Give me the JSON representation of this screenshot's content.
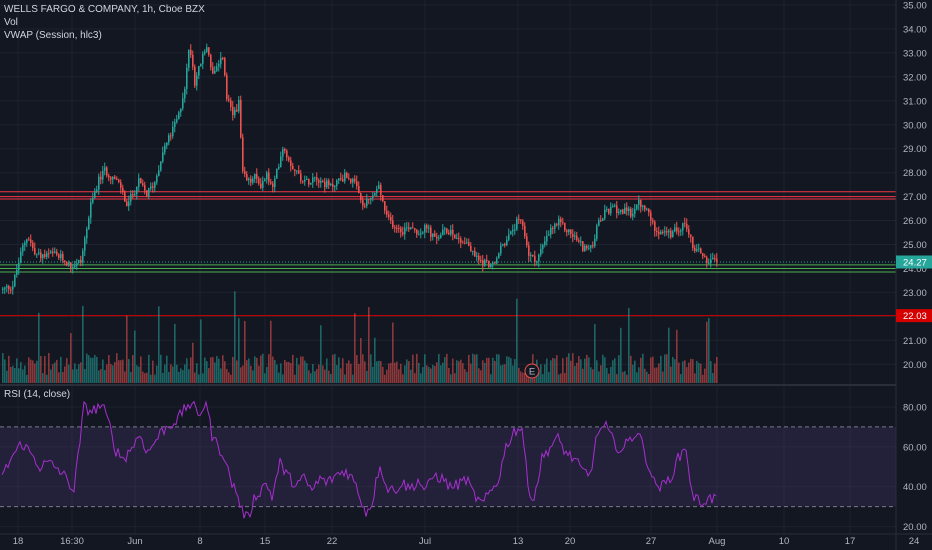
{
  "legend": {
    "symbol": "WELLS FARGO & COMPANY, 1h, Cboe BZX",
    "volume": "Vol",
    "vwap": "VWAP (Session, hlc3)"
  },
  "rsi_legend": "RSI (14, close)",
  "colors": {
    "background": "#131722",
    "up": "#26a69a",
    "down": "#ef5350",
    "grid": "#1e222d",
    "rsi_line": "#a72fd0",
    "rsi_band": "#7e57c2",
    "support_green": "#4caf50",
    "resistance_red": "#f23645",
    "last_price_tag": "#26a69a",
    "level_tag": "#d50000"
  },
  "chart_data": [
    {
      "type": "candlestick",
      "title": "WELLS FARGO & COMPANY, 1h, Cboe BZX",
      "x_ticks": [
        "18",
        "16:30",
        "Jun",
        "8",
        "15",
        "22",
        "Jul",
        "13",
        "20",
        "27",
        "Aug",
        "10",
        "17",
        "24"
      ],
      "y_ticks": [
        20.0,
        21.0,
        22.0,
        23.0,
        24.0,
        25.0,
        26.0,
        27.0,
        28.0,
        29.0,
        30.0,
        31.0,
        32.0,
        33.0,
        34.0,
        35.0
      ],
      "ylim": [
        19.4,
        35.2
      ],
      "price_anchors": [
        [
          0,
          23.1
        ],
        [
          10,
          23.3
        ],
        [
          20,
          24.9
        ],
        [
          25,
          25.4
        ],
        [
          32,
          24.6
        ],
        [
          42,
          24.5
        ],
        [
          50,
          24.6
        ],
        [
          60,
          24.4
        ],
        [
          68,
          24.1
        ],
        [
          78,
          24.3
        ],
        [
          88,
          26.6
        ],
        [
          95,
          27.6
        ],
        [
          102,
          28.1
        ],
        [
          110,
          27.8
        ],
        [
          118,
          27.4
        ],
        [
          124,
          26.6
        ],
        [
          130,
          27.1
        ],
        [
          136,
          27.6
        ],
        [
          144,
          27.1
        ],
        [
          152,
          27.6
        ],
        [
          160,
          28.9
        ],
        [
          168,
          29.6
        ],
        [
          176,
          30.4
        ],
        [
          182,
          31.6
        ],
        [
          187,
          33.4
        ],
        [
          192,
          31.8
        ],
        [
          198,
          32.6
        ],
        [
          204,
          33.3
        ],
        [
          210,
          32.1
        ],
        [
          216,
          32.4
        ],
        [
          220,
          32.9
        ],
        [
          224,
          31.1
        ],
        [
          230,
          30.4
        ],
        [
          236,
          30.9
        ],
        [
          240,
          27.9
        ],
        [
          246,
          27.6
        ],
        [
          252,
          27.8
        ],
        [
          258,
          27.5
        ],
        [
          264,
          27.9
        ],
        [
          270,
          27.3
        ],
        [
          276,
          28.4
        ],
        [
          280,
          29.1
        ],
        [
          288,
          28.4
        ],
        [
          296,
          27.9
        ],
        [
          304,
          27.6
        ],
        [
          312,
          27.9
        ],
        [
          320,
          27.6
        ],
        [
          328,
          27.4
        ],
        [
          336,
          27.7
        ],
        [
          344,
          27.9
        ],
        [
          352,
          27.5
        ],
        [
          360,
          26.6
        ],
        [
          368,
          26.9
        ],
        [
          376,
          27.4
        ],
        [
          384,
          26.1
        ],
        [
          392,
          25.8
        ],
        [
          400,
          25.6
        ],
        [
          408,
          25.8
        ],
        [
          416,
          25.5
        ],
        [
          424,
          25.7
        ],
        [
          432,
          25.2
        ],
        [
          440,
          25.5
        ],
        [
          448,
          25.6
        ],
        [
          456,
          25.2
        ],
        [
          464,
          25.1
        ],
        [
          470,
          24.6
        ],
        [
          478,
          24.3
        ],
        [
          486,
          24.2
        ],
        [
          492,
          24.1
        ],
        [
          498,
          24.9
        ],
        [
          506,
          25.3
        ],
        [
          514,
          25.9
        ],
        [
          520,
          25.8
        ],
        [
          526,
          24.6
        ],
        [
          532,
          24.3
        ],
        [
          540,
          24.9
        ],
        [
          548,
          25.6
        ],
        [
          556,
          25.9
        ],
        [
          564,
          25.6
        ],
        [
          572,
          25.3
        ],
        [
          580,
          24.9
        ],
        [
          588,
          24.8
        ],
        [
          596,
          25.9
        ],
        [
          604,
          26.4
        ],
        [
          612,
          26.5
        ],
        [
          620,
          26.4
        ],
        [
          628,
          26.3
        ],
        [
          636,
          26.7
        ],
        [
          644,
          26.4
        ],
        [
          652,
          25.7
        ],
        [
          660,
          25.5
        ],
        [
          668,
          25.4
        ],
        [
          676,
          25.7
        ],
        [
          684,
          25.8
        ],
        [
          690,
          24.9
        ],
        [
          698,
          24.7
        ],
        [
          704,
          24.3
        ],
        [
          708,
          24.3
        ],
        [
          715,
          24.27
        ]
      ],
      "horizontal_levels": [
        {
          "value": 27.2,
          "color": "#f23645"
        },
        {
          "value": 27.0,
          "color": "#f23645"
        },
        {
          "value": 26.9,
          "color": "#f23645"
        },
        {
          "value": 24.15,
          "color": "#4caf50"
        },
        {
          "value": 24.0,
          "color": "#4caf50"
        },
        {
          "value": 23.85,
          "color": "#4caf50"
        },
        {
          "value": 22.03,
          "color": "#d50000"
        }
      ],
      "last_price": 24.27,
      "price_tags": [
        "24.27",
        "22.03"
      ],
      "earnings_marker": {
        "label": "E",
        "x_index": 530
      }
    },
    {
      "type": "rsi",
      "title": "RSI (14, close)",
      "y_ticks": [
        "20.00",
        "40.00",
        "60.00",
        "80.00"
      ],
      "ylim": [
        17,
        88
      ],
      "band": [
        30,
        70
      ],
      "rsi_anchors": [
        [
          0,
          45
        ],
        [
          10,
          55
        ],
        [
          20,
          62
        ],
        [
          30,
          56
        ],
        [
          38,
          50
        ],
        [
          46,
          52
        ],
        [
          56,
          49
        ],
        [
          66,
          43
        ],
        [
          72,
          38
        ],
        [
          82,
          80
        ],
        [
          90,
          78
        ],
        [
          100,
          81
        ],
        [
          108,
          70
        ],
        [
          114,
          58
        ],
        [
          122,
          54
        ],
        [
          130,
          60
        ],
        [
          138,
          66
        ],
        [
          146,
          57
        ],
        [
          152,
          62
        ],
        [
          160,
          68
        ],
        [
          168,
          71
        ],
        [
          176,
          74
        ],
        [
          184,
          80
        ],
        [
          190,
          82
        ],
        [
          196,
          75
        ],
        [
          204,
          83
        ],
        [
          210,
          66
        ],
        [
          216,
          60
        ],
        [
          222,
          56
        ],
        [
          228,
          44
        ],
        [
          234,
          38
        ],
        [
          240,
          28
        ],
        [
          246,
          24
        ],
        [
          252,
          34
        ],
        [
          258,
          38
        ],
        [
          264,
          42
        ],
        [
          270,
          35
        ],
        [
          278,
          52
        ],
        [
          286,
          45
        ],
        [
          294,
          41
        ],
        [
          302,
          44
        ],
        [
          310,
          38
        ],
        [
          318,
          44
        ],
        [
          326,
          42
        ],
        [
          334,
          46
        ],
        [
          344,
          48
        ],
        [
          352,
          43
        ],
        [
          358,
          35
        ],
        [
          364,
          27
        ],
        [
          370,
          32
        ],
        [
          378,
          52
        ],
        [
          384,
          40
        ],
        [
          392,
          38
        ],
        [
          400,
          42
        ],
        [
          408,
          39
        ],
        [
          416,
          43
        ],
        [
          424,
          38
        ],
        [
          432,
          46
        ],
        [
          440,
          44
        ],
        [
          448,
          40
        ],
        [
          456,
          41
        ],
        [
          464,
          44
        ],
        [
          472,
          36
        ],
        [
          480,
          31
        ],
        [
          488,
          37
        ],
        [
          496,
          43
        ],
        [
          504,
          60
        ],
        [
          512,
          68
        ],
        [
          520,
          70
        ],
        [
          526,
          40
        ],
        [
          532,
          34
        ],
        [
          540,
          54
        ],
        [
          548,
          60
        ],
        [
          556,
          64
        ],
        [
          564,
          57
        ],
        [
          572,
          54
        ],
        [
          580,
          48
        ],
        [
          588,
          46
        ],
        [
          596,
          68
        ],
        [
          604,
          70
        ],
        [
          612,
          62
        ],
        [
          620,
          58
        ],
        [
          628,
          64
        ],
        [
          636,
          68
        ],
        [
          644,
          55
        ],
        [
          652,
          42
        ],
        [
          660,
          40
        ],
        [
          668,
          44
        ],
        [
          676,
          54
        ],
        [
          684,
          60
        ],
        [
          690,
          36
        ],
        [
          698,
          32
        ],
        [
          706,
          34
        ],
        [
          715,
          34
        ]
      ]
    }
  ]
}
